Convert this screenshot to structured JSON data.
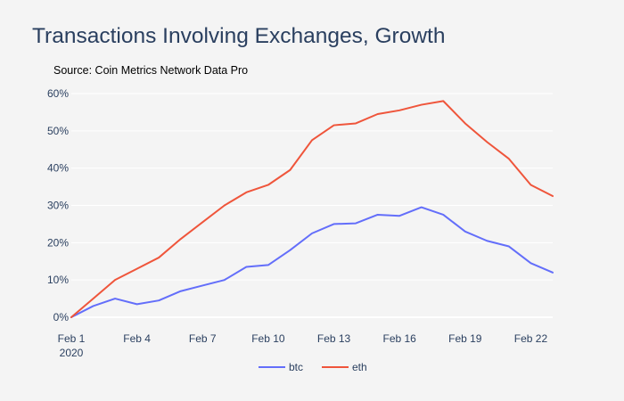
{
  "chart_data": {
    "type": "line",
    "title": "Transactions Involving Exchanges, Growth",
    "subtitle": "Source: Coin Metrics Network Data Pro",
    "xlabel": "",
    "ylabel": "",
    "x": [
      "2020-02-01",
      "2020-02-02",
      "2020-02-03",
      "2020-02-04",
      "2020-02-05",
      "2020-02-06",
      "2020-02-07",
      "2020-02-08",
      "2020-02-09",
      "2020-02-10",
      "2020-02-11",
      "2020-02-12",
      "2020-02-13",
      "2020-02-14",
      "2020-02-15",
      "2020-02-16",
      "2020-02-17",
      "2020-02-18",
      "2020-02-19",
      "2020-02-20",
      "2020-02-21",
      "2020-02-22",
      "2020-02-23"
    ],
    "xlim": [
      "2020-02-01",
      "2020-02-23"
    ],
    "ylim": [
      0,
      60
    ],
    "x_ticks": [
      {
        "value": "2020-02-01",
        "label": "Feb 1",
        "sublabel": "2020"
      },
      {
        "value": "2020-02-04",
        "label": "Feb 4",
        "sublabel": ""
      },
      {
        "value": "2020-02-07",
        "label": "Feb 7",
        "sublabel": ""
      },
      {
        "value": "2020-02-10",
        "label": "Feb 10",
        "sublabel": ""
      },
      {
        "value": "2020-02-13",
        "label": "Feb 13",
        "sublabel": ""
      },
      {
        "value": "2020-02-16",
        "label": "Feb 16",
        "sublabel": ""
      },
      {
        "value": "2020-02-19",
        "label": "Feb 19",
        "sublabel": ""
      },
      {
        "value": "2020-02-22",
        "label": "Feb 22",
        "sublabel": ""
      }
    ],
    "y_ticks": [
      {
        "value": 0,
        "label": "0%"
      },
      {
        "value": 10,
        "label": "10%"
      },
      {
        "value": 20,
        "label": "20%"
      },
      {
        "value": 30,
        "label": "30%"
      },
      {
        "value": 40,
        "label": "40%"
      },
      {
        "value": 50,
        "label": "50%"
      },
      {
        "value": 60,
        "label": "60%"
      }
    ],
    "grid": true,
    "legend_position": "bottom-center",
    "series": [
      {
        "name": "btc",
        "color": "#636efa",
        "values": [
          0,
          3,
          5,
          3.5,
          4.5,
          7,
          8.5,
          10,
          13.5,
          14,
          18,
          22.5,
          25,
          25.2,
          27.5,
          27.2,
          29.5,
          27.5,
          23,
          20.5,
          19,
          14.5,
          12
        ]
      },
      {
        "name": "eth",
        "color": "#ef553b",
        "values": [
          0,
          5,
          10,
          13,
          16,
          21,
          25.5,
          30,
          33.5,
          35.5,
          39.5,
          47.5,
          51.5,
          52,
          54.5,
          55.5,
          57,
          58,
          52,
          47,
          42.5,
          35.5,
          32.5
        ]
      }
    ]
  }
}
